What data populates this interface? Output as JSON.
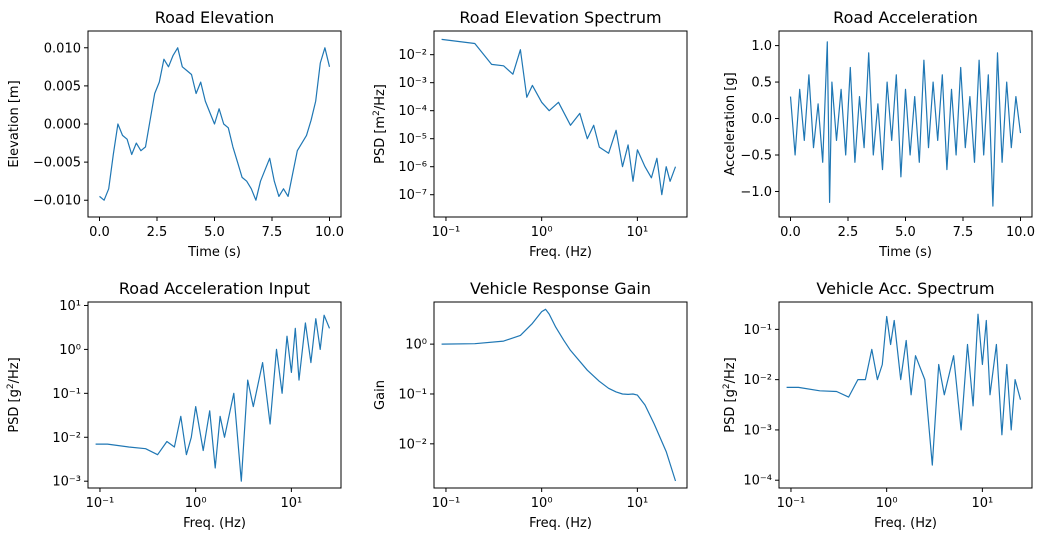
{
  "figure": {
    "line_color": "#1f77b4",
    "background": "#ffffff"
  },
  "chart_data": [
    {
      "id": "road-elevation",
      "type": "line",
      "title": "Road Elevation",
      "xlabel": "Time (s)",
      "ylabel": "Elevation [m]",
      "xscale": "linear",
      "yscale": "linear",
      "xlim": [
        -0.5,
        10.5
      ],
      "ylim": [
        -0.0122,
        0.0122
      ],
      "xticks": [
        0,
        2.5,
        5,
        7.5,
        10
      ],
      "xtick_labels": [
        "0.0",
        "2.5",
        "5.0",
        "7.5",
        "10.0"
      ],
      "yticks": [
        -0.01,
        -0.005,
        0,
        0.005,
        0.01
      ],
      "ytick_labels": [
        "−0.010",
        "−0.005",
        "0.000",
        "0.005",
        "0.010"
      ],
      "x": [
        0,
        0.2,
        0.4,
        0.6,
        0.8,
        1.0,
        1.2,
        1.4,
        1.6,
        1.8,
        2.0,
        2.2,
        2.4,
        2.6,
        2.8,
        3.0,
        3.2,
        3.4,
        3.6,
        3.8,
        4.0,
        4.2,
        4.4,
        4.6,
        4.8,
        5.0,
        5.2,
        5.4,
        5.6,
        5.8,
        6.0,
        6.2,
        6.4,
        6.6,
        6.8,
        7.0,
        7.2,
        7.4,
        7.6,
        7.8,
        8.0,
        8.2,
        8.4,
        8.6,
        8.8,
        9.0,
        9.2,
        9.4,
        9.6,
        9.8,
        10.0
      ],
      "y": [
        -0.0095,
        -0.01,
        -0.0085,
        -0.004,
        0.0,
        -0.0015,
        -0.002,
        -0.004,
        -0.0025,
        -0.0035,
        -0.003,
        0.0005,
        0.004,
        0.0055,
        0.0085,
        0.0075,
        0.009,
        0.01,
        0.0075,
        0.007,
        0.0065,
        0.004,
        0.0055,
        0.003,
        0.0015,
        0.0,
        0.002,
        0.0,
        -0.0005,
        -0.003,
        -0.005,
        -0.007,
        -0.0075,
        -0.0085,
        -0.01,
        -0.0075,
        -0.006,
        -0.0045,
        -0.0075,
        -0.0095,
        -0.0085,
        -0.0095,
        -0.0065,
        -0.0035,
        -0.0025,
        -0.0015,
        0.0005,
        0.003,
        0.008,
        0.01,
        0.0075
      ]
    },
    {
      "id": "road-elevation-spectrum",
      "type": "line",
      "title": "Road Elevation Spectrum",
      "xlabel": "Freq. (Hz)",
      "ylabel": "PSD [m²/Hz]",
      "xscale": "log",
      "yscale": "log",
      "xlim": [
        0.075,
        33
      ],
      "ylim": [
        1.6e-08,
        0.07
      ],
      "xticks": [
        0.1,
        1,
        10
      ],
      "xtick_labels": [
        "10⁻¹",
        "10⁰",
        "10¹"
      ],
      "yticks": [
        1e-07,
        1e-06,
        1e-05,
        0.0001,
        0.001,
        0.01
      ],
      "ytick_labels": [
        "10⁻⁷",
        "10⁻⁶",
        "10⁻⁵",
        "10⁻⁴",
        "10⁻³",
        "10⁻²"
      ],
      "x": [
        0.09,
        0.2,
        0.3,
        0.4,
        0.5,
        0.6,
        0.7,
        0.8,
        1.0,
        1.2,
        1.5,
        2.0,
        2.5,
        3.0,
        3.5,
        4.0,
        5.0,
        6.0,
        7.0,
        8.0,
        9.0,
        10.0,
        12.0,
        14.0,
        16.0,
        18.0,
        20.0,
        22.0,
        25.0
      ],
      "y": [
        0.035,
        0.025,
        0.0045,
        0.004,
        0.002,
        0.015,
        0.0003,
        0.0008,
        0.0002,
        0.0001,
        0.0002,
        3e-05,
        8e-05,
        1e-05,
        3e-05,
        5e-06,
        3e-06,
        2e-05,
        1e-06,
        6e-06,
        3e-07,
        4e-06,
        1e-06,
        4e-07,
        2e-06,
        1e-07,
        1e-06,
        3e-07,
        1e-06
      ]
    },
    {
      "id": "road-acceleration",
      "type": "line",
      "title": "Road Acceleration",
      "xlabel": "Time (s)",
      "ylabel": "Acceleration [g]",
      "xscale": "linear",
      "yscale": "linear",
      "xlim": [
        -0.5,
        10.5
      ],
      "ylim": [
        -1.35,
        1.2
      ],
      "xticks": [
        0,
        2.5,
        5,
        7.5,
        10
      ],
      "xtick_labels": [
        "0.0",
        "2.5",
        "5.0",
        "7.5",
        "10.0"
      ],
      "yticks": [
        -1.0,
        -0.5,
        0,
        0.5,
        1.0
      ],
      "ytick_labels": [
        "−1.0",
        "−0.5",
        "0.0",
        "0.5",
        "1.0"
      ],
      "x": [
        0,
        0.2,
        0.4,
        0.6,
        0.8,
        1.0,
        1.2,
        1.4,
        1.6,
        1.7,
        1.8,
        2.0,
        2.2,
        2.4,
        2.6,
        2.8,
        3.0,
        3.2,
        3.4,
        3.6,
        3.8,
        4.0,
        4.2,
        4.4,
        4.6,
        4.8,
        5.0,
        5.2,
        5.4,
        5.6,
        5.8,
        6.0,
        6.2,
        6.4,
        6.6,
        6.8,
        7.0,
        7.2,
        7.4,
        7.6,
        7.8,
        8.0,
        8.2,
        8.4,
        8.6,
        8.8,
        9.0,
        9.2,
        9.4,
        9.6,
        9.8,
        10.0
      ],
      "y": [
        0.3,
        -0.5,
        0.4,
        -0.3,
        0.6,
        -0.4,
        0.2,
        -0.6,
        1.05,
        -1.15,
        0.5,
        -0.3,
        0.4,
        -0.5,
        0.7,
        -0.6,
        0.3,
        -0.4,
        0.9,
        -0.5,
        0.2,
        -0.7,
        0.5,
        -0.3,
        0.6,
        -0.8,
        0.4,
        -0.5,
        0.3,
        -0.6,
        0.8,
        -0.4,
        0.5,
        -0.3,
        0.6,
        -0.7,
        0.4,
        -0.5,
        0.7,
        -0.4,
        0.3,
        -0.6,
        0.8,
        -0.5,
        0.6,
        -1.2,
        0.9,
        -0.6,
        0.5,
        -0.4,
        0.3,
        -0.2
      ]
    },
    {
      "id": "road-acceleration-input",
      "type": "line",
      "title": "Road Acceleration Input",
      "xlabel": "Freq. (Hz)",
      "ylabel": "PSD [g²/Hz]",
      "xscale": "log",
      "yscale": "log",
      "xlim": [
        0.075,
        33
      ],
      "ylim": [
        0.0007,
        12
      ],
      "xticks": [
        0.1,
        1,
        10
      ],
      "xtick_labels": [
        "10⁻¹",
        "10⁰",
        "10¹"
      ],
      "yticks": [
        0.001,
        0.01,
        0.1,
        1,
        10
      ],
      "ytick_labels": [
        "10⁻³",
        "10⁻²",
        "10⁻¹",
        "10⁰",
        "10¹"
      ],
      "x": [
        0.09,
        0.12,
        0.2,
        0.3,
        0.4,
        0.5,
        0.6,
        0.7,
        0.8,
        0.9,
        1.0,
        1.2,
        1.4,
        1.6,
        1.8,
        2.0,
        2.5,
        3.0,
        3.5,
        4.0,
        5.0,
        6.0,
        7.0,
        8.0,
        9.0,
        10.0,
        11.0,
        12.0,
        14.0,
        16.0,
        18.0,
        20.0,
        22.0,
        25.0
      ],
      "y": [
        0.007,
        0.007,
        0.006,
        0.0055,
        0.004,
        0.008,
        0.006,
        0.03,
        0.004,
        0.01,
        0.05,
        0.005,
        0.04,
        0.002,
        0.03,
        0.01,
        0.1,
        0.001,
        0.2,
        0.05,
        0.5,
        0.02,
        1.0,
        0.1,
        2.0,
        0.3,
        3.0,
        0.2,
        4.0,
        0.5,
        5.0,
        1.0,
        6.0,
        3.0
      ]
    },
    {
      "id": "vehicle-response-gain",
      "type": "line",
      "title": "Vehicle Response Gain",
      "xlabel": "Freq. (Hz)",
      "ylabel": "Gain",
      "xscale": "log",
      "yscale": "log",
      "xlim": [
        0.075,
        33
      ],
      "ylim": [
        0.0013,
        7
      ],
      "xticks": [
        0.1,
        1,
        10
      ],
      "xtick_labels": [
        "10⁻¹",
        "10⁰",
        "10¹"
      ],
      "yticks": [
        0.01,
        0.1,
        1
      ],
      "ytick_labels": [
        "10⁻²",
        "10⁻¹",
        "10⁰"
      ],
      "x": [
        0.09,
        0.2,
        0.4,
        0.6,
        0.8,
        1.0,
        1.1,
        1.2,
        1.4,
        1.7,
        2.0,
        3.0,
        4.0,
        5.0,
        6.0,
        7.0,
        8.0,
        9.0,
        10.0,
        12.0,
        15.0,
        20.0,
        25.0
      ],
      "y": [
        1.0,
        1.02,
        1.15,
        1.5,
        2.6,
        4.5,
        5.0,
        4.0,
        2.2,
        1.2,
        0.75,
        0.3,
        0.18,
        0.13,
        0.11,
        0.1,
        0.098,
        0.1,
        0.095,
        0.06,
        0.025,
        0.007,
        0.0018
      ]
    },
    {
      "id": "vehicle-acc-spectrum",
      "type": "line",
      "title": "Vehicle Acc. Spectrum",
      "xlabel": "Freq. (Hz)",
      "ylabel": "PSD [g²/Hz]",
      "xscale": "log",
      "yscale": "log",
      "xlim": [
        0.075,
        33
      ],
      "ylim": [
        7e-05,
        0.35
      ],
      "xticks": [
        0.1,
        1,
        10
      ],
      "xtick_labels": [
        "10⁻¹",
        "10⁰",
        "10¹"
      ],
      "yticks": [
        0.0001,
        0.001,
        0.01,
        0.1
      ],
      "ytick_labels": [
        "10⁻⁴",
        "10⁻³",
        "10⁻²",
        "10⁻¹"
      ],
      "x": [
        0.09,
        0.12,
        0.2,
        0.3,
        0.4,
        0.5,
        0.6,
        0.7,
        0.8,
        0.9,
        1.0,
        1.1,
        1.2,
        1.4,
        1.6,
        1.8,
        2.0,
        2.5,
        3.0,
        3.5,
        4.0,
        5.0,
        6.0,
        7.0,
        8.0,
        9.0,
        10.0,
        11.0,
        12.0,
        14.0,
        16.0,
        18.0,
        20.0,
        22.0,
        25.0
      ],
      "y": [
        0.007,
        0.007,
        0.006,
        0.0058,
        0.0045,
        0.01,
        0.01,
        0.04,
        0.01,
        0.02,
        0.18,
        0.05,
        0.15,
        0.01,
        0.06,
        0.005,
        0.03,
        0.01,
        0.0002,
        0.02,
        0.005,
        0.03,
        0.001,
        0.05,
        0.003,
        0.2,
        0.02,
        0.15,
        0.005,
        0.05,
        0.0008,
        0.02,
        0.001,
        0.01,
        0.004
      ]
    }
  ]
}
